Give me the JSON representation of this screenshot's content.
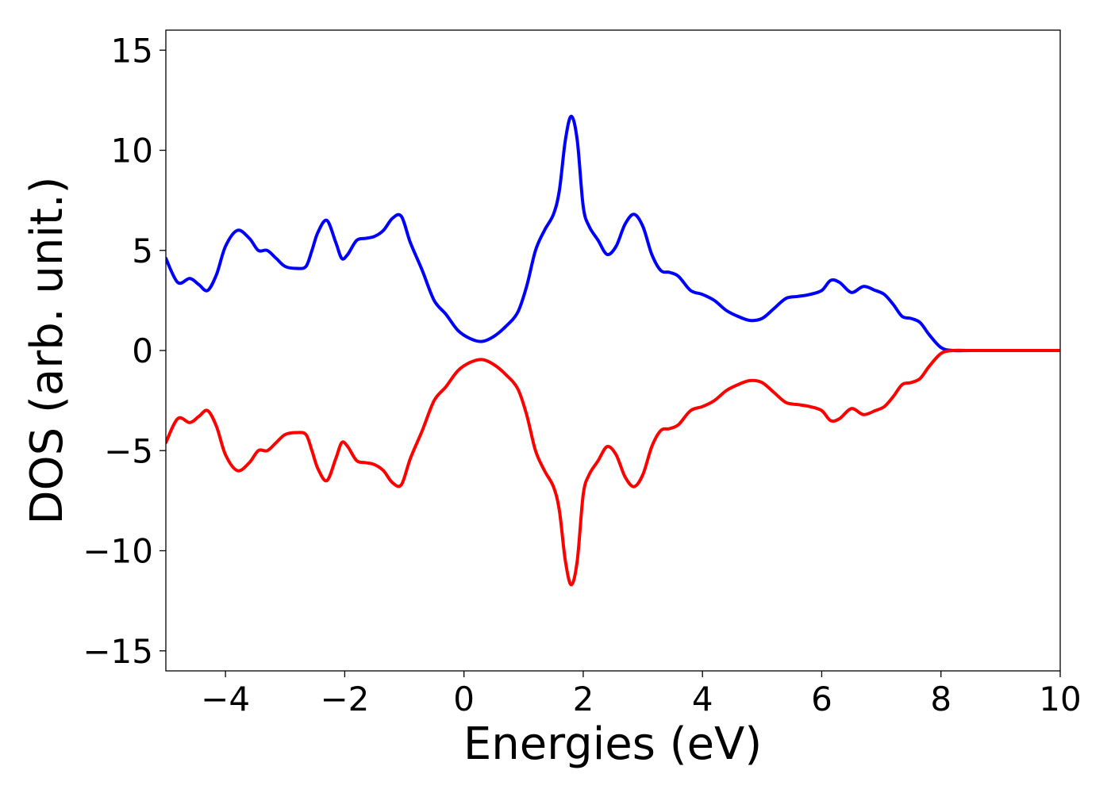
{
  "chart_data": {
    "type": "line",
    "title": "",
    "xlabel": "Energies (eV)",
    "ylabel": "DOS (arb. unit.)",
    "xlim": [
      -5,
      10
    ],
    "ylim": [
      -16,
      16
    ],
    "grid": false,
    "legend": "none",
    "x_ticks": [
      -4,
      -2,
      0,
      2,
      4,
      6,
      8,
      10
    ],
    "x_tick_labels": [
      "−4",
      "−2",
      "0",
      "2",
      "4",
      "6",
      "8",
      "10"
    ],
    "y_ticks": [
      -15,
      -10,
      -5,
      0,
      5,
      10,
      15
    ],
    "y_tick_labels": [
      "−15",
      "−10",
      "−5",
      "0",
      "5",
      "10",
      "15"
    ],
    "mirror_series": true,
    "x": [
      -5.0,
      -4.8,
      -4.6,
      -4.45,
      -4.3,
      -4.15,
      -4.0,
      -3.8,
      -3.6,
      -3.45,
      -3.3,
      -3.15,
      -3.0,
      -2.8,
      -2.65,
      -2.55,
      -2.45,
      -2.3,
      -2.15,
      -2.05,
      -1.95,
      -1.8,
      -1.65,
      -1.5,
      -1.35,
      -1.2,
      -1.05,
      -0.9,
      -0.7,
      -0.5,
      -0.3,
      -0.1,
      0.1,
      0.3,
      0.5,
      0.7,
      0.9,
      1.05,
      1.2,
      1.35,
      1.5,
      1.6,
      1.7,
      1.8,
      1.9,
      2.0,
      2.1,
      2.25,
      2.4,
      2.55,
      2.7,
      2.85,
      3.0,
      3.15,
      3.3,
      3.45,
      3.6,
      3.8,
      4.0,
      4.2,
      4.4,
      4.6,
      4.8,
      5.0,
      5.2,
      5.4,
      5.6,
      5.8,
      6.0,
      6.15,
      6.3,
      6.5,
      6.7,
      6.9,
      7.05,
      7.2,
      7.35,
      7.5,
      7.65,
      7.8,
      8.0,
      8.2,
      8.5,
      9.0,
      9.5,
      10.0
    ],
    "series": [
      {
        "color": "#0000ff",
        "values": [
          4.6,
          3.4,
          3.6,
          3.3,
          3.0,
          3.8,
          5.2,
          6.0,
          5.6,
          5.0,
          5.0,
          4.6,
          4.2,
          4.1,
          4.2,
          5.0,
          5.9,
          6.5,
          5.4,
          4.6,
          4.8,
          5.5,
          5.6,
          5.7,
          6.0,
          6.6,
          6.7,
          5.4,
          4.0,
          2.5,
          1.8,
          1.0,
          0.6,
          0.45,
          0.7,
          1.2,
          1.9,
          3.2,
          5.0,
          6.0,
          6.8,
          8.0,
          10.5,
          11.7,
          10.5,
          7.2,
          6.2,
          5.5,
          4.8,
          5.2,
          6.3,
          6.8,
          6.2,
          4.8,
          4.0,
          3.9,
          3.7,
          3.0,
          2.8,
          2.5,
          2.0,
          1.7,
          1.5,
          1.6,
          2.1,
          2.6,
          2.7,
          2.8,
          3.0,
          3.5,
          3.4,
          2.9,
          3.2,
          3.0,
          2.8,
          2.3,
          1.7,
          1.6,
          1.4,
          0.8,
          0.15,
          0.0,
          0.0,
          0.0,
          0.0,
          0.0
        ]
      },
      {
        "color": "#ff0000",
        "values": [
          -4.6,
          -3.4,
          -3.6,
          -3.3,
          -3.0,
          -3.8,
          -5.2,
          -6.0,
          -5.6,
          -5.0,
          -5.0,
          -4.6,
          -4.2,
          -4.1,
          -4.2,
          -5.0,
          -5.9,
          -6.5,
          -5.4,
          -4.6,
          -4.8,
          -5.5,
          -5.6,
          -5.7,
          -6.0,
          -6.6,
          -6.7,
          -5.4,
          -4.0,
          -2.5,
          -1.8,
          -1.0,
          -0.6,
          -0.45,
          -0.7,
          -1.2,
          -1.9,
          -3.2,
          -5.0,
          -6.0,
          -6.8,
          -8.0,
          -10.5,
          -11.7,
          -10.5,
          -7.2,
          -6.2,
          -5.5,
          -4.8,
          -5.2,
          -6.3,
          -6.8,
          -6.2,
          -4.8,
          -4.0,
          -3.9,
          -3.7,
          -3.0,
          -2.8,
          -2.5,
          -2.0,
          -1.7,
          -1.5,
          -1.6,
          -2.1,
          -2.6,
          -2.7,
          -2.8,
          -3.0,
          -3.5,
          -3.4,
          -2.9,
          -3.2,
          -3.0,
          -2.8,
          -2.3,
          -1.7,
          -1.6,
          -1.4,
          -0.8,
          -0.15,
          0.0,
          0.0,
          0.0,
          0.0,
          0.0
        ]
      }
    ]
  }
}
